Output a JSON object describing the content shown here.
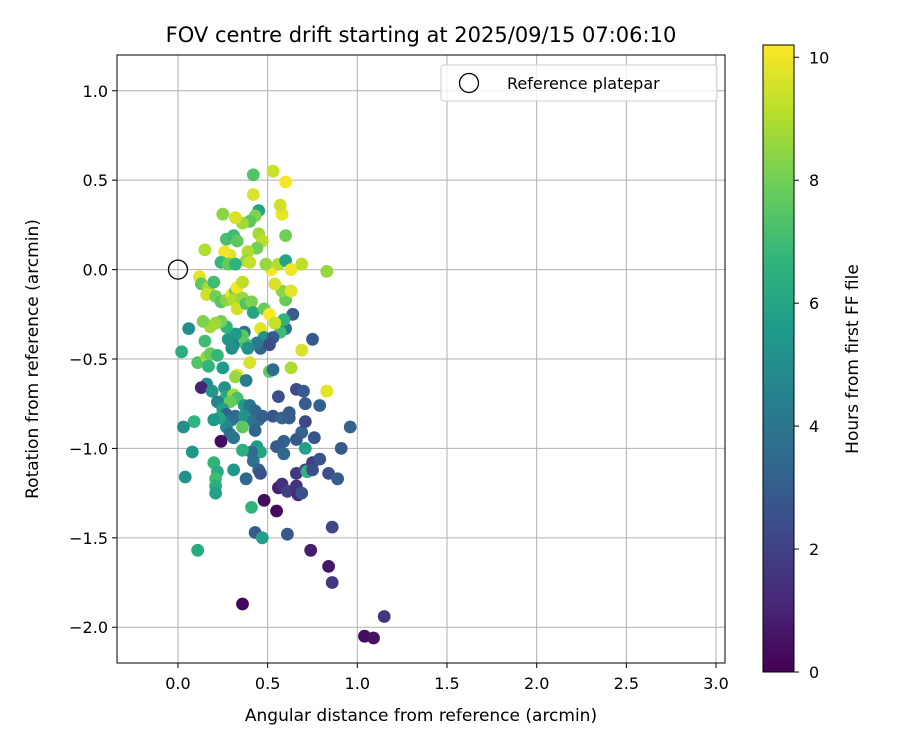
{
  "chart_data": {
    "type": "scatter",
    "title": "FOV centre drift starting at 2025/09/15 07:06:10",
    "xlabel": "Angular distance from reference (arcmin)",
    "ylabel": "Rotation from reference (arcmin)",
    "xlim": [
      -0.34,
      3.05
    ],
    "ylim": [
      -2.2,
      1.2
    ],
    "xticks": [
      0.0,
      0.5,
      1.0,
      1.5,
      2.0,
      2.5,
      3.0
    ],
    "xtick_labels": [
      "0.0",
      "0.5",
      "1.0",
      "1.5",
      "2.0",
      "2.5",
      "3.0"
    ],
    "yticks": [
      1.0,
      0.5,
      0.0,
      -0.5,
      -1.0,
      -1.5,
      -2.0
    ],
    "ytick_labels": [
      "1.0",
      "0.5",
      "0.0",
      "−0.5",
      "−1.0",
      "−1.5",
      "−2.0"
    ],
    "grid": true,
    "legend": {
      "position": "top-right",
      "entries": [
        {
          "label": "Reference platepar",
          "marker": "open-circle"
        }
      ]
    },
    "reference_point": {
      "x": 0.0,
      "y": 0.0,
      "label": "Reference platepar"
    },
    "colorbar": {
      "label": "Hours from first FF file",
      "colormap": "viridis",
      "range": [
        0,
        10.2
      ],
      "ticks": [
        0,
        2,
        4,
        6,
        8,
        10
      ],
      "tick_labels": [
        "0",
        "2",
        "4",
        "6",
        "8",
        "10"
      ]
    },
    "colormap_stops": [
      "#440154",
      "#482878",
      "#3e4989",
      "#31688e",
      "#26828e",
      "#1f9e89",
      "#35b779",
      "#6ece58",
      "#b5de2b",
      "#fde725"
    ],
    "points": [
      {
        "x": 1.04,
        "y": -2.05,
        "t": 0.3
      },
      {
        "x": 1.09,
        "y": -2.06,
        "t": 0.5
      },
      {
        "x": 1.15,
        "y": -1.94,
        "t": 1.6
      },
      {
        "x": 0.36,
        "y": -1.87,
        "t": 0.2
      },
      {
        "x": 0.84,
        "y": -1.66,
        "t": 0.6
      },
      {
        "x": 0.86,
        "y": -1.75,
        "t": 1.8
      },
      {
        "x": 0.74,
        "y": -1.57,
        "t": 0.8
      },
      {
        "x": 0.86,
        "y": -1.44,
        "t": 2.2
      },
      {
        "x": 0.61,
        "y": -1.48,
        "t": 2.8
      },
      {
        "x": 0.43,
        "y": -1.47,
        "t": 3.0
      },
      {
        "x": 0.47,
        "y": -1.5,
        "t": 5.8
      },
      {
        "x": 0.11,
        "y": -1.57,
        "t": 6.2
      },
      {
        "x": 0.55,
        "y": -1.35,
        "t": 0.2
      },
      {
        "x": 0.48,
        "y": -1.29,
        "t": 0.4
      },
      {
        "x": 0.41,
        "y": -1.33,
        "t": 6.6
      },
      {
        "x": 0.56,
        "y": -1.22,
        "t": 0.9
      },
      {
        "x": 0.58,
        "y": -1.2,
        "t": 1.4
      },
      {
        "x": 0.61,
        "y": -1.24,
        "t": 2.0
      },
      {
        "x": 0.66,
        "y": -1.21,
        "t": 1.5
      },
      {
        "x": 0.67,
        "y": -1.26,
        "t": 1.2
      },
      {
        "x": 0.69,
        "y": -1.25,
        "t": 2.6
      },
      {
        "x": 0.66,
        "y": -1.14,
        "t": 1.7
      },
      {
        "x": 0.71,
        "y": -1.12,
        "t": 2.4
      },
      {
        "x": 0.75,
        "y": -1.08,
        "t": 1.9
      },
      {
        "x": 0.79,
        "y": -1.06,
        "t": 2.7
      },
      {
        "x": 0.84,
        "y": -1.14,
        "t": 2.5
      },
      {
        "x": 0.89,
        "y": -1.17,
        "t": 3.0
      },
      {
        "x": 0.91,
        "y": -1.0,
        "t": 2.9
      },
      {
        "x": 0.96,
        "y": -0.88,
        "t": 3.2
      },
      {
        "x": 0.79,
        "y": -0.76,
        "t": 3.1
      },
      {
        "x": 0.71,
        "y": -0.75,
        "t": 3.0
      },
      {
        "x": 0.66,
        "y": -0.67,
        "t": 2.3
      },
      {
        "x": 0.7,
        "y": -0.68,
        "t": 2.9
      },
      {
        "x": 0.83,
        "y": -0.68,
        "t": 9.8
      },
      {
        "x": 0.75,
        "y": -0.39,
        "t": 2.9
      },
      {
        "x": 0.69,
        "y": -0.45,
        "t": 9.6
      },
      {
        "x": 0.63,
        "y": -0.55,
        "t": 8.9
      },
      {
        "x": 0.64,
        "y": -0.25,
        "t": 3.0
      },
      {
        "x": 0.6,
        "y": -0.33,
        "t": 4.0
      },
      {
        "x": 0.57,
        "y": -0.35,
        "t": 7.0
      },
      {
        "x": 0.59,
        "y": -0.28,
        "t": 6.6
      },
      {
        "x": 0.6,
        "y": -0.17,
        "t": 7.8
      },
      {
        "x": 0.58,
        "y": -0.12,
        "t": 8.4
      },
      {
        "x": 0.63,
        "y": -0.12,
        "t": 9.8
      },
      {
        "x": 0.54,
        "y": -0.08,
        "t": 9.6
      },
      {
        "x": 0.52,
        "y": 0.0,
        "t": 10.1
      },
      {
        "x": 0.56,
        "y": 0.03,
        "t": 9.0
      },
      {
        "x": 0.6,
        "y": 0.05,
        "t": 5.9
      },
      {
        "x": 0.63,
        "y": 0.0,
        "t": 10.0
      },
      {
        "x": 0.69,
        "y": 0.03,
        "t": 9.2
      },
      {
        "x": 0.83,
        "y": -0.01,
        "t": 8.6
      },
      {
        "x": 0.6,
        "y": 0.19,
        "t": 8.0
      },
      {
        "x": 0.58,
        "y": 0.31,
        "t": 9.9
      },
      {
        "x": 0.57,
        "y": 0.36,
        "t": 9.5
      },
      {
        "x": 0.53,
        "y": 0.55,
        "t": 9.4
      },
      {
        "x": 0.6,
        "y": 0.49,
        "t": 10.1
      },
      {
        "x": 0.42,
        "y": 0.53,
        "t": 7.4
      },
      {
        "x": 0.42,
        "y": 0.42,
        "t": 9.7
      },
      {
        "x": 0.45,
        "y": 0.33,
        "t": 6.0
      },
      {
        "x": 0.43,
        "y": 0.3,
        "t": 8.2
      },
      {
        "x": 0.4,
        "y": 0.27,
        "t": 7.6
      },
      {
        "x": 0.36,
        "y": 0.26,
        "t": 8.8
      },
      {
        "x": 0.32,
        "y": 0.29,
        "t": 9.6
      },
      {
        "x": 0.25,
        "y": 0.31,
        "t": 8.4
      },
      {
        "x": 0.27,
        "y": 0.17,
        "t": 7.2
      },
      {
        "x": 0.31,
        "y": 0.19,
        "t": 7.0
      },
      {
        "x": 0.33,
        "y": 0.16,
        "t": 7.6
      },
      {
        "x": 0.45,
        "y": 0.2,
        "t": 8.8
      },
      {
        "x": 0.47,
        "y": 0.16,
        "t": 9.2
      },
      {
        "x": 0.44,
        "y": 0.12,
        "t": 8.0
      },
      {
        "x": 0.39,
        "y": 0.1,
        "t": 9.0
      },
      {
        "x": 0.38,
        "y": 0.05,
        "t": 8.6
      },
      {
        "x": 0.4,
        "y": 0.04,
        "t": 9.3
      },
      {
        "x": 0.49,
        "y": 0.03,
        "t": 8.6
      },
      {
        "x": 0.29,
        "y": 0.08,
        "t": 9.7
      },
      {
        "x": 0.26,
        "y": 0.1,
        "t": 10.0
      },
      {
        "x": 0.24,
        "y": 0.04,
        "t": 6.8
      },
      {
        "x": 0.28,
        "y": 0.03,
        "t": 7.8
      },
      {
        "x": 0.32,
        "y": 0.03,
        "t": 6.6
      },
      {
        "x": 0.15,
        "y": 0.11,
        "t": 9.0
      },
      {
        "x": 0.12,
        "y": -0.04,
        "t": 9.8
      },
      {
        "x": 0.13,
        "y": -0.08,
        "t": 7.6
      },
      {
        "x": 0.17,
        "y": -0.1,
        "t": 8.8
      },
      {
        "x": 0.2,
        "y": -0.07,
        "t": 7.0
      },
      {
        "x": 0.16,
        "y": -0.14,
        "t": 9.5
      },
      {
        "x": 0.21,
        "y": -0.15,
        "t": 8.0
      },
      {
        "x": 0.24,
        "y": -0.18,
        "t": 7.5
      },
      {
        "x": 0.27,
        "y": -0.17,
        "t": 8.4
      },
      {
        "x": 0.3,
        "y": -0.14,
        "t": 9.9
      },
      {
        "x": 0.32,
        "y": -0.12,
        "t": 8.0
      },
      {
        "x": 0.33,
        "y": -0.1,
        "t": 10.1
      },
      {
        "x": 0.36,
        "y": -0.07,
        "t": 9.2
      },
      {
        "x": 0.31,
        "y": -0.17,
        "t": 9.0
      },
      {
        "x": 0.33,
        "y": -0.22,
        "t": 9.5
      },
      {
        "x": 0.36,
        "y": -0.16,
        "t": 8.6
      },
      {
        "x": 0.38,
        "y": -0.19,
        "t": 7.4
      },
      {
        "x": 0.41,
        "y": -0.18,
        "t": 8.2
      },
      {
        "x": 0.42,
        "y": -0.24,
        "t": 6.0
      },
      {
        "x": 0.48,
        "y": -0.22,
        "t": 7.8
      },
      {
        "x": 0.51,
        "y": -0.25,
        "t": 10.2
      },
      {
        "x": 0.54,
        "y": -0.3,
        "t": 9.4
      },
      {
        "x": 0.46,
        "y": -0.33,
        "t": 9.8
      },
      {
        "x": 0.48,
        "y": -0.38,
        "t": 5.2
      },
      {
        "x": 0.53,
        "y": -0.38,
        "t": 2.9
      },
      {
        "x": 0.46,
        "y": -0.44,
        "t": 3.2
      },
      {
        "x": 0.51,
        "y": -0.42,
        "t": 2.4
      },
      {
        "x": 0.44,
        "y": -0.41,
        "t": 4.2
      },
      {
        "x": 0.37,
        "y": -0.35,
        "t": 3.8
      },
      {
        "x": 0.38,
        "y": -0.42,
        "t": 7.0
      },
      {
        "x": 0.36,
        "y": -0.37,
        "t": 7.6
      },
      {
        "x": 0.32,
        "y": -0.36,
        "t": 5.6
      },
      {
        "x": 0.31,
        "y": -0.42,
        "t": 4.8
      },
      {
        "x": 0.28,
        "y": -0.39,
        "t": 5.4
      },
      {
        "x": 0.27,
        "y": -0.32,
        "t": 6.6
      },
      {
        "x": 0.24,
        "y": -0.29,
        "t": 8.0
      },
      {
        "x": 0.21,
        "y": -0.3,
        "t": 8.6
      },
      {
        "x": 0.18,
        "y": -0.32,
        "t": 8.8
      },
      {
        "x": 0.14,
        "y": -0.29,
        "t": 8.2
      },
      {
        "x": 0.06,
        "y": -0.33,
        "t": 5.0
      },
      {
        "x": 0.15,
        "y": -0.4,
        "t": 7.0
      },
      {
        "x": 0.02,
        "y": -0.46,
        "t": 6.4
      },
      {
        "x": 0.11,
        "y": -0.52,
        "t": 7.4
      },
      {
        "x": 0.16,
        "y": -0.49,
        "t": 8.6
      },
      {
        "x": 0.18,
        "y": -0.47,
        "t": 7.8
      },
      {
        "x": 0.22,
        "y": -0.48,
        "t": 6.8
      },
      {
        "x": 0.25,
        "y": -0.55,
        "t": 5.6
      },
      {
        "x": 0.17,
        "y": -0.54,
        "t": 6.6
      },
      {
        "x": 0.3,
        "y": -0.44,
        "t": 5.0
      },
      {
        "x": 0.39,
        "y": -0.44,
        "t": 5.2
      },
      {
        "x": 0.4,
        "y": -0.52,
        "t": 9.6
      },
      {
        "x": 0.51,
        "y": -0.57,
        "t": 7.6
      },
      {
        "x": 0.53,
        "y": -0.56,
        "t": 3.6
      },
      {
        "x": 0.33,
        "y": -0.59,
        "t": 9.8
      },
      {
        "x": 0.32,
        "y": -0.6,
        "t": 8.6
      },
      {
        "x": 0.38,
        "y": -0.62,
        "t": 4.2
      },
      {
        "x": 0.16,
        "y": -0.64,
        "t": 5.0
      },
      {
        "x": 0.13,
        "y": -0.66,
        "t": 1.0
      },
      {
        "x": 0.19,
        "y": -0.68,
        "t": 5.4
      },
      {
        "x": 0.26,
        "y": -0.66,
        "t": 5.2
      },
      {
        "x": 0.27,
        "y": -0.71,
        "t": 6.2
      },
      {
        "x": 0.31,
        "y": -0.7,
        "t": 8.8
      },
      {
        "x": 0.33,
        "y": -0.72,
        "t": 7.2
      },
      {
        "x": 0.29,
        "y": -0.74,
        "t": 7.8
      },
      {
        "x": 0.22,
        "y": -0.74,
        "t": 4.6
      },
      {
        "x": 0.37,
        "y": -0.76,
        "t": 5.6
      },
      {
        "x": 0.4,
        "y": -0.76,
        "t": 4.0
      },
      {
        "x": 0.43,
        "y": -0.79,
        "t": 3.4
      },
      {
        "x": 0.25,
        "y": -0.78,
        "t": 5.8
      },
      {
        "x": 0.27,
        "y": -0.81,
        "t": 3.2
      },
      {
        "x": 0.3,
        "y": -0.84,
        "t": 4.4
      },
      {
        "x": 0.32,
        "y": -0.82,
        "t": 3.6
      },
      {
        "x": 0.37,
        "y": -0.82,
        "t": 5.2
      },
      {
        "x": 0.42,
        "y": -0.85,
        "t": 4.0
      },
      {
        "x": 0.45,
        "y": -0.84,
        "t": 3.8
      },
      {
        "x": 0.47,
        "y": -0.82,
        "t": 3.1
      },
      {
        "x": 0.43,
        "y": -0.9,
        "t": 3.3
      },
      {
        "x": 0.36,
        "y": -0.88,
        "t": 7.6
      },
      {
        "x": 0.27,
        "y": -0.88,
        "t": 4.8
      },
      {
        "x": 0.29,
        "y": -0.92,
        "t": 3.5
      },
      {
        "x": 0.31,
        "y": -0.94,
        "t": 3.9
      },
      {
        "x": 0.24,
        "y": -0.96,
        "t": 0.3
      },
      {
        "x": 0.09,
        "y": -0.85,
        "t": 6.6
      },
      {
        "x": 0.03,
        "y": -0.88,
        "t": 5.0
      },
      {
        "x": 0.23,
        "y": -0.83,
        "t": 6.0
      },
      {
        "x": 0.2,
        "y": -0.84,
        "t": 5.6
      },
      {
        "x": 0.53,
        "y": -0.82,
        "t": 2.8
      },
      {
        "x": 0.58,
        "y": -0.83,
        "t": 3.4
      },
      {
        "x": 0.62,
        "y": -0.83,
        "t": 3.0
      },
      {
        "x": 0.62,
        "y": -0.8,
        "t": 3.0
      },
      {
        "x": 0.56,
        "y": -0.71,
        "t": 2.5
      },
      {
        "x": 0.69,
        "y": -0.91,
        "t": 3.3
      },
      {
        "x": 0.71,
        "y": -0.85,
        "t": 2.2
      },
      {
        "x": 0.76,
        "y": -0.94,
        "t": 2.7
      },
      {
        "x": 0.66,
        "y": -0.95,
        "t": 2.9
      },
      {
        "x": 0.59,
        "y": -0.96,
        "t": 3.1
      },
      {
        "x": 0.55,
        "y": -0.99,
        "t": 2.9
      },
      {
        "x": 0.59,
        "y": -1.03,
        "t": 3.4
      },
      {
        "x": 0.71,
        "y": -1.0,
        "t": 5.8
      },
      {
        "x": 0.44,
        "y": -0.99,
        "t": 5.6
      },
      {
        "x": 0.46,
        "y": -1.02,
        "t": 6.0
      },
      {
        "x": 0.41,
        "y": -1.02,
        "t": 3.6
      },
      {
        "x": 0.36,
        "y": -1.01,
        "t": 6.4
      },
      {
        "x": 0.42,
        "y": -1.07,
        "t": 3.8
      },
      {
        "x": 0.45,
        "y": -1.12,
        "t": 3.2
      },
      {
        "x": 0.46,
        "y": -1.14,
        "t": 2.6
      },
      {
        "x": 0.38,
        "y": -1.17,
        "t": 3.4
      },
      {
        "x": 0.31,
        "y": -1.12,
        "t": 5.4
      },
      {
        "x": 0.2,
        "y": -1.08,
        "t": 6.6
      },
      {
        "x": 0.22,
        "y": -1.13,
        "t": 6.2
      },
      {
        "x": 0.21,
        "y": -1.17,
        "t": 7.0
      },
      {
        "x": 0.21,
        "y": -1.21,
        "t": 6.4
      },
      {
        "x": 0.21,
        "y": -1.25,
        "t": 5.8
      },
      {
        "x": 0.08,
        "y": -1.02,
        "t": 5.4
      },
      {
        "x": 0.04,
        "y": -1.16,
        "t": 5.2
      },
      {
        "x": 0.72,
        "y": -1.13,
        "t": 6.6
      },
      {
        "x": 0.75,
        "y": -1.12,
        "t": 2.4
      }
    ]
  }
}
